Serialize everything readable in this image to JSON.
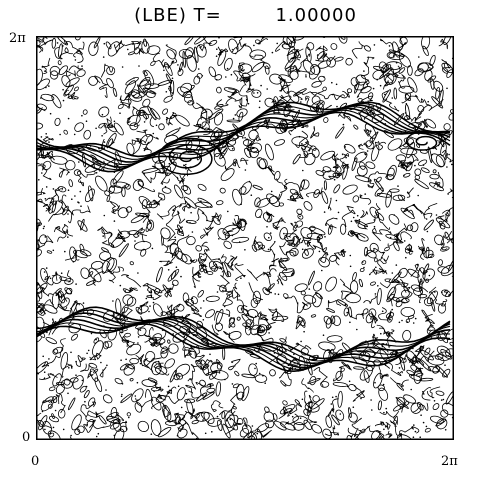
{
  "figure": {
    "title_label": "(LBE)",
    "time_label": "T=",
    "time_value": "1.00000",
    "axis": {
      "x_min_label": "0",
      "x_max_label": "2π",
      "y_min_label": "0",
      "y_max_label": "2π"
    }
  },
  "colors": {
    "ink": "#000000",
    "background": "#ffffff"
  }
}
